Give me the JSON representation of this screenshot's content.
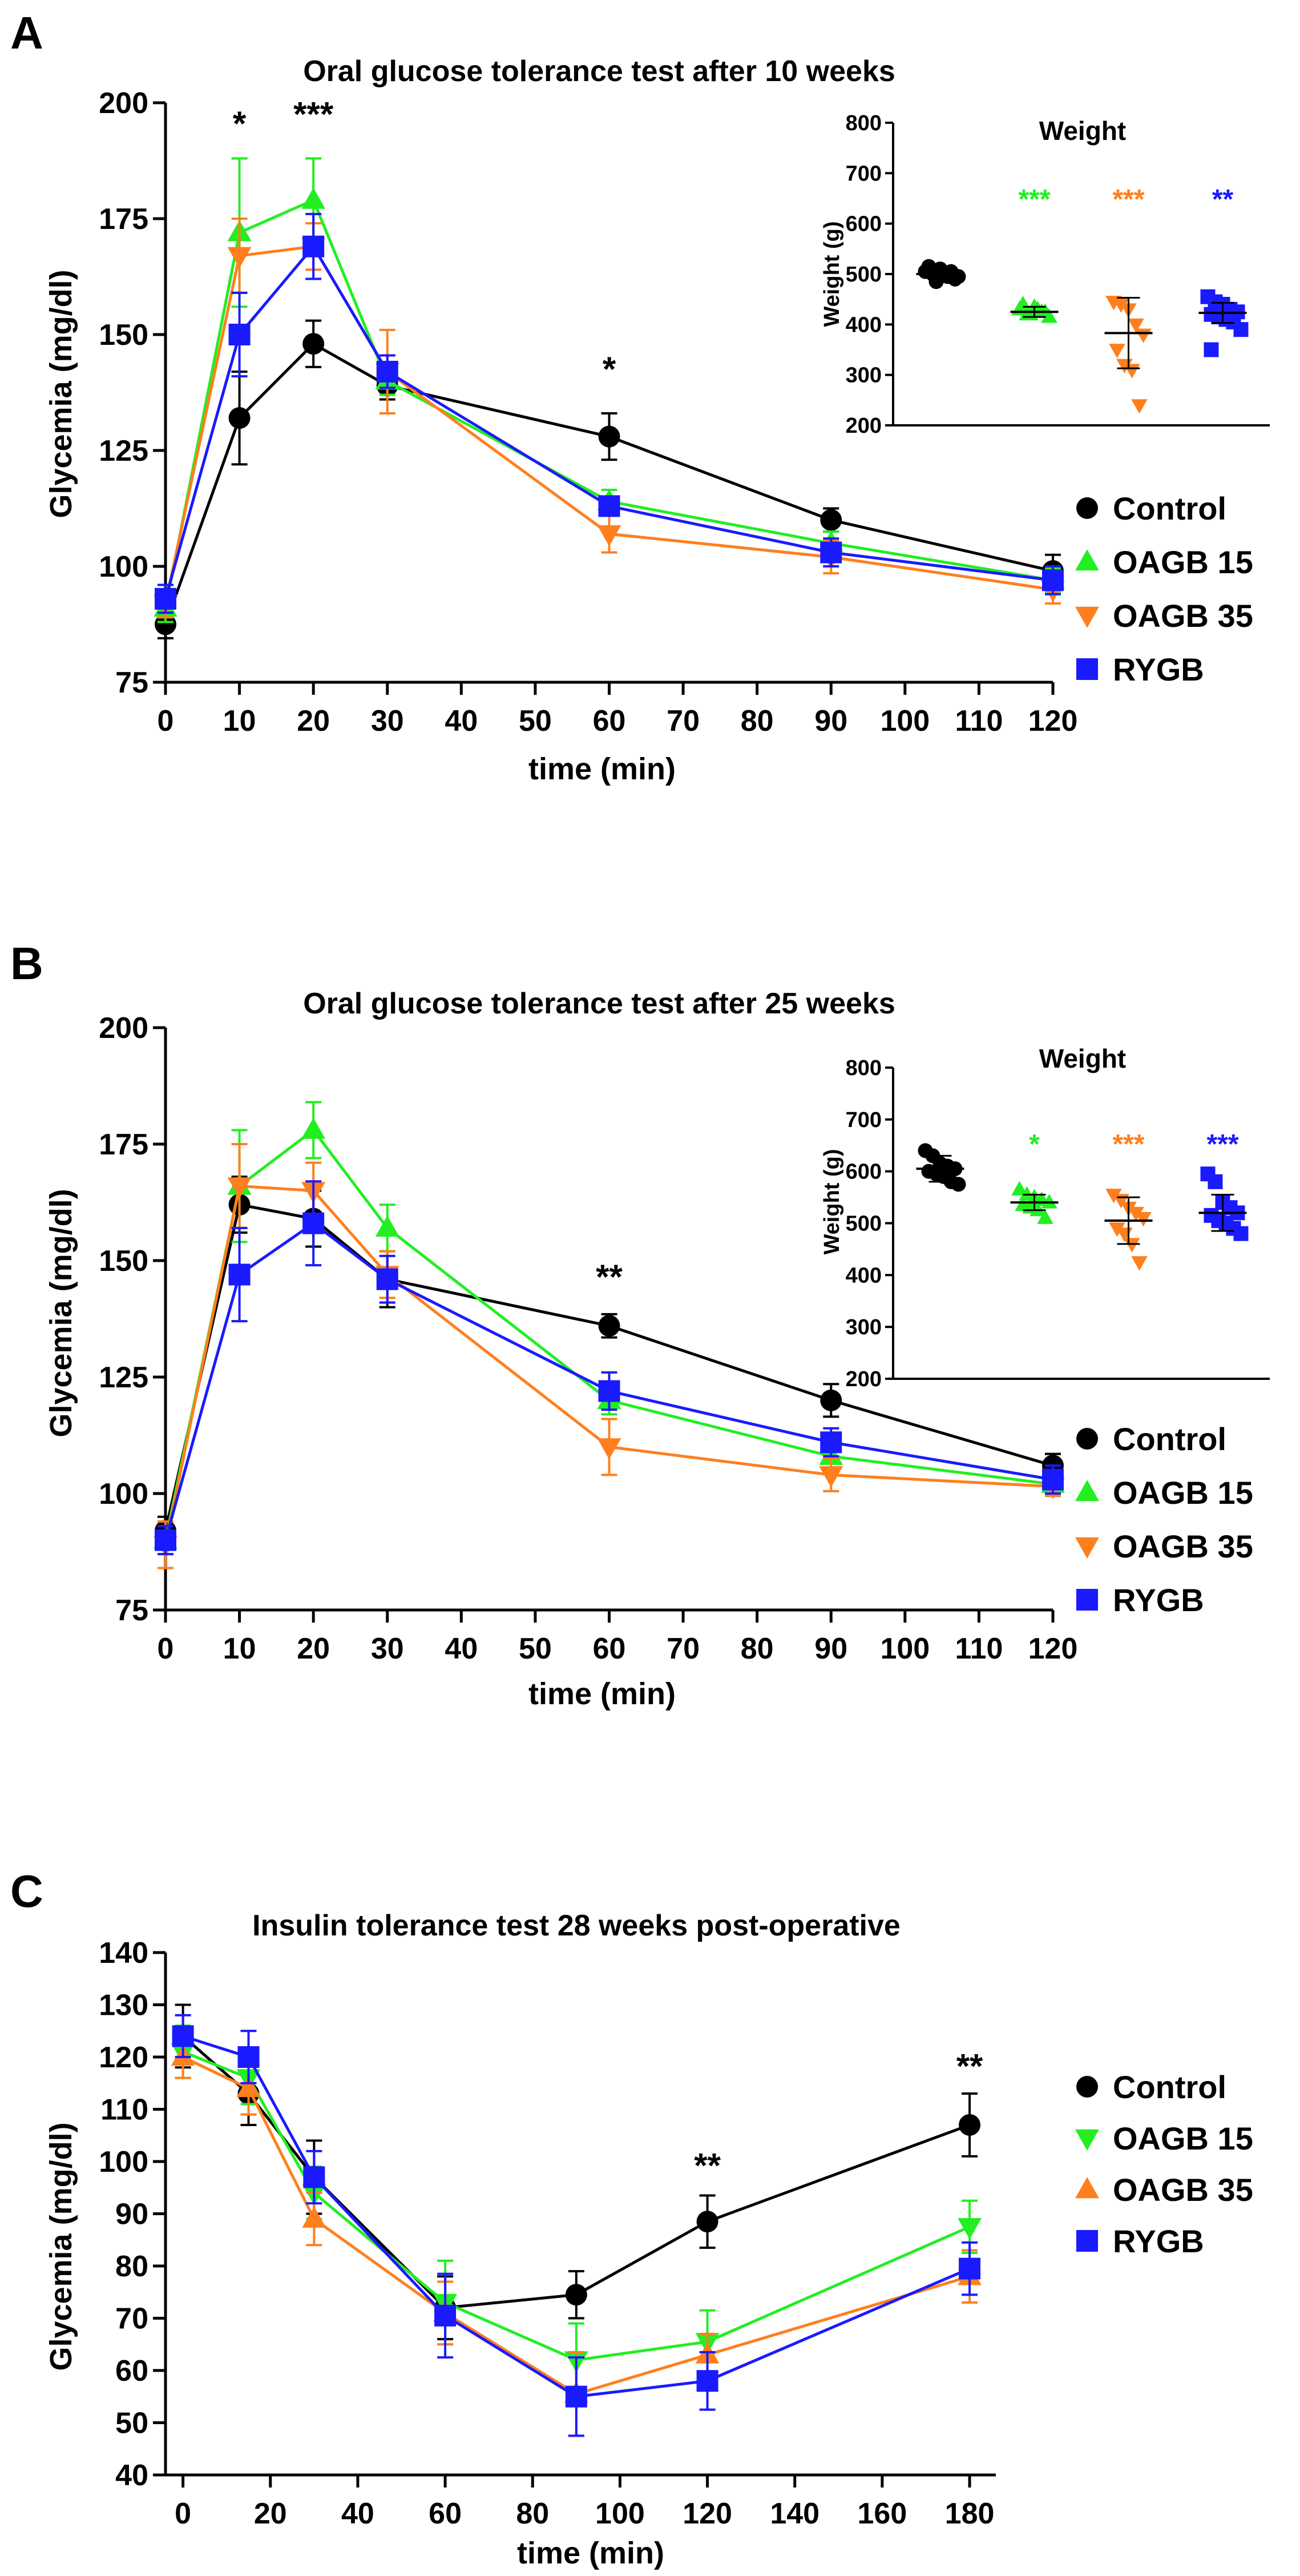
{
  "chart_data": [
    {
      "panel_letter": "A",
      "type": "line",
      "title": "Oral glucose tolerance test after 10 weeks",
      "xlabel": "time (min)",
      "ylabel": "Glycemia (mg/dl)",
      "xlim": [
        0,
        120
      ],
      "ylim": [
        75,
        200
      ],
      "xticks": [
        0,
        10,
        20,
        30,
        40,
        50,
        60,
        70,
        80,
        90,
        100,
        110,
        120
      ],
      "yticks": [
        75,
        100,
        125,
        150,
        175,
        200
      ],
      "legend_position": "right",
      "series": [
        {
          "name": "Control",
          "color": "#000000",
          "marker": "circle",
          "x": [
            0,
            10,
            20,
            30,
            60,
            90,
            120
          ],
          "y": [
            87.5,
            132,
            148,
            139,
            128,
            110,
            99
          ],
          "err": [
            3,
            10,
            5,
            3,
            5,
            2.5,
            3.5
          ]
        },
        {
          "name": "OAGB 15",
          "color": "#22ee22",
          "marker": "triangle-up",
          "x": [
            0,
            10,
            20,
            30,
            60,
            90,
            120
          ],
          "y": [
            91,
            172,
            179,
            140,
            114,
            105,
            97
          ],
          "err": [
            3,
            16,
            9,
            3,
            2.5,
            2.5,
            2.5
          ]
        },
        {
          "name": "OAGB 35",
          "color": "#ff7f1e",
          "marker": "triangle-down",
          "x": [
            0,
            10,
            20,
            30,
            60,
            90,
            120
          ],
          "y": [
            92,
            167,
            169,
            142,
            107,
            102,
            95
          ],
          "err": [
            3,
            8,
            5,
            9,
            4,
            3.5,
            3
          ]
        },
        {
          "name": "RYGB",
          "color": "#1a1aff",
          "marker": "square",
          "x": [
            0,
            10,
            20,
            30,
            60,
            90,
            120
          ],
          "y": [
            93,
            150,
            169,
            142,
            113,
            103,
            97
          ],
          "err": [
            3,
            9,
            7,
            3.5,
            2,
            3,
            3
          ]
        }
      ],
      "annotations": [
        {
          "x": 10,
          "text": "*",
          "y": 193
        },
        {
          "x": 20,
          "text": "***",
          "y": 195
        },
        {
          "x": 60,
          "text": "*",
          "y": 140
        }
      ],
      "inset": {
        "type": "scatter",
        "title": "Weight",
        "ylabel": "Weight (g)",
        "ylim": [
          200,
          800
        ],
        "yticks": [
          200,
          300,
          400,
          500,
          600,
          700,
          800
        ],
        "groups": [
          {
            "name": "Control",
            "color": "#000000",
            "marker": "circle",
            "mean": 500,
            "sd": 12,
            "points": [
              505,
              500,
              510,
              495,
              490,
              515,
              485,
              500,
              505,
              495
            ],
            "sig": ""
          },
          {
            "name": "OAGB 15",
            "color": "#22ee22",
            "marker": "triangle-up",
            "mean": 425,
            "sd": 10,
            "points": [
              430,
              420,
              435,
              425,
              415,
              440,
              420,
              430,
              425
            ],
            "sig": "***"
          },
          {
            "name": "OAGB 35",
            "color": "#ff7f1e",
            "marker": "triangle-down",
            "mean": 383,
            "sd": 70,
            "points": [
              445,
              440,
              430,
              400,
              380,
              350,
              320,
              310,
              240
            ],
            "sig": "***"
          },
          {
            "name": "RYGB",
            "color": "#1a1aff",
            "marker": "square",
            "mean": 423,
            "sd": 20,
            "points": [
              455,
              445,
              440,
              430,
              425,
              420,
              415,
              410,
              405,
              390,
              350
            ],
            "sig": "**"
          }
        ]
      }
    },
    {
      "panel_letter": "B",
      "type": "line",
      "title": "Oral glucose tolerance test after 25 weeks",
      "xlabel": "time (min)",
      "ylabel": "Glycemia (mg/dl)",
      "xlim": [
        0,
        120
      ],
      "ylim": [
        75,
        200
      ],
      "xticks": [
        0,
        10,
        20,
        30,
        40,
        50,
        60,
        70,
        80,
        90,
        100,
        110,
        120
      ],
      "yticks": [
        75,
        100,
        125,
        150,
        175,
        200
      ],
      "legend_position": "right",
      "series": [
        {
          "name": "Control",
          "color": "#000000",
          "marker": "circle",
          "x": [
            0,
            10,
            20,
            30,
            60,
            90,
            120
          ],
          "y": [
            92,
            162,
            159,
            146,
            136,
            120,
            106
          ],
          "err": [
            3,
            6,
            6,
            6,
            2.5,
            3.5,
            2.5
          ]
        },
        {
          "name": "OAGB 15",
          "color": "#22ee22",
          "marker": "triangle-up",
          "x": [
            0,
            10,
            20,
            30,
            60,
            90,
            120
          ],
          "y": [
            90,
            166,
            178,
            157,
            120,
            108,
            102
          ],
          "err": [
            3,
            12,
            6,
            5,
            3,
            3,
            2.5
          ]
        },
        {
          "name": "OAGB 35",
          "color": "#ff7f1e",
          "marker": "triangle-down",
          "x": [
            0,
            10,
            20,
            30,
            60,
            90,
            120
          ],
          "y": [
            89,
            166,
            165,
            147,
            110,
            104,
            101.5
          ],
          "err": [
            5,
            9,
            6,
            5,
            6,
            3.5,
            2
          ]
        },
        {
          "name": "RYGB",
          "color": "#1a1aff",
          "marker": "square",
          "x": [
            0,
            10,
            20,
            30,
            60,
            90,
            120
          ],
          "y": [
            90,
            147,
            158,
            146,
            122,
            111,
            103
          ],
          "err": [
            3,
            10,
            9,
            5,
            4,
            3,
            3
          ]
        }
      ],
      "annotations": [
        {
          "x": 60,
          "text": "**",
          "y": 144
        }
      ],
      "inset": {
        "type": "scatter",
        "title": "Weight",
        "ylabel": "Weight (g)",
        "ylim": [
          200,
          800
        ],
        "yticks": [
          200,
          300,
          400,
          500,
          600,
          700,
          800
        ],
        "groups": [
          {
            "name": "Control",
            "color": "#000000",
            "marker": "circle",
            "mean": 605,
            "sd": 25,
            "points": [
              640,
              630,
              615,
              610,
              605,
              600,
              595,
              590,
              580,
              575
            ],
            "sig": ""
          },
          {
            "name": "OAGB 15",
            "color": "#22ee22",
            "marker": "triangle-up",
            "mean": 540,
            "sd": 15,
            "points": [
              565,
              555,
              550,
              545,
              540,
              535,
              530,
              525,
              510
            ],
            "sig": "*"
          },
          {
            "name": "OAGB 35",
            "color": "#ff7f1e",
            "marker": "triangle-down",
            "mean": 505,
            "sd": 45,
            "points": [
              555,
              545,
              530,
              520,
              510,
              490,
              480,
              460,
              425
            ],
            "sig": "***"
          },
          {
            "name": "RYGB",
            "color": "#1a1aff",
            "marker": "square",
            "mean": 520,
            "sd": 35,
            "points": [
              595,
              580,
              540,
              530,
              520,
              515,
              505,
              500,
              490,
              480
            ],
            "sig": "***"
          }
        ]
      }
    },
    {
      "panel_letter": "C",
      "type": "line",
      "title": "Insulin tolerance test 28 weeks post-operative",
      "xlabel": "time (min)",
      "ylabel": "Glycemia (mg/dl)",
      "xlim": [
        -4,
        186
      ],
      "ylim": [
        40,
        140
      ],
      "xticks": [
        0,
        20,
        40,
        60,
        80,
        100,
        120,
        140,
        160,
        180
      ],
      "yticks": [
        40,
        50,
        60,
        70,
        80,
        90,
        100,
        110,
        120,
        130,
        140
      ],
      "legend_position": "right",
      "series": [
        {
          "name": "Control",
          "color": "#000000",
          "marker": "circle",
          "x": [
            0,
            15,
            30,
            60,
            90,
            120,
            180
          ],
          "y": [
            124,
            113,
            97,
            72,
            74.5,
            88.5,
            107
          ],
          "err": [
            6,
            6,
            7,
            6,
            4.5,
            5,
            6
          ]
        },
        {
          "name": "OAGB 15",
          "color": "#22ee22",
          "marker": "triangle-down",
          "x": [
            0,
            15,
            30,
            60,
            90,
            120,
            180
          ],
          "y": [
            121,
            116,
            94,
            73,
            62,
            65.5,
            87.5
          ],
          "err": [
            5,
            5,
            5,
            8,
            7,
            6,
            5
          ]
        },
        {
          "name": "OAGB 35",
          "color": "#ff7f1e",
          "marker": "triangle-up",
          "x": [
            0,
            15,
            30,
            60,
            90,
            120,
            180
          ],
          "y": [
            120,
            114,
            89,
            71,
            55.5,
            63,
            78
          ],
          "err": [
            4,
            5,
            5,
            6,
            8,
            4,
            5
          ]
        },
        {
          "name": "RYGB",
          "color": "#1a1aff",
          "marker": "square",
          "x": [
            0,
            15,
            30,
            60,
            90,
            120,
            180
          ],
          "y": [
            124,
            120,
            97,
            70.5,
            55,
            58,
            79.5
          ],
          "err": [
            4,
            5,
            5,
            8,
            7.5,
            5.5,
            5
          ]
        }
      ],
      "annotations": [
        {
          "x": 120,
          "text": "**",
          "y": 97
        },
        {
          "x": 180,
          "text": "**",
          "y": 116
        }
      ]
    }
  ]
}
